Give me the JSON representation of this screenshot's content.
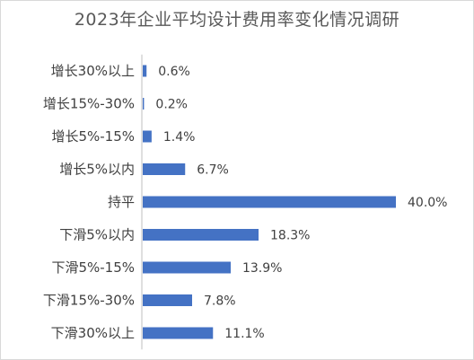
{
  "chart_data": {
    "type": "bar",
    "orientation": "horizontal",
    "title": "2023年企业平均设计费用率变化情况调研",
    "categories": [
      "增长30%以上",
      "增长15%-30%",
      "增长5%-15%",
      "增长5%以内",
      "持平",
      "下滑5%以内",
      "下滑5%-15%",
      "下滑15%-30%",
      "下滑30%以上"
    ],
    "values": [
      0.6,
      0.2,
      1.4,
      6.7,
      40.0,
      18.3,
      13.9,
      7.8,
      11.1
    ],
    "data_labels": [
      "0.6%",
      "0.2%",
      "1.4%",
      "6.7%",
      "40.0%",
      "18.3%",
      "13.9%",
      "7.8%",
      "11.1%"
    ],
    "unit": "%",
    "bar_color": "#4472c4",
    "xlim": [
      0,
      40
    ],
    "grid": false,
    "legend": "none"
  }
}
